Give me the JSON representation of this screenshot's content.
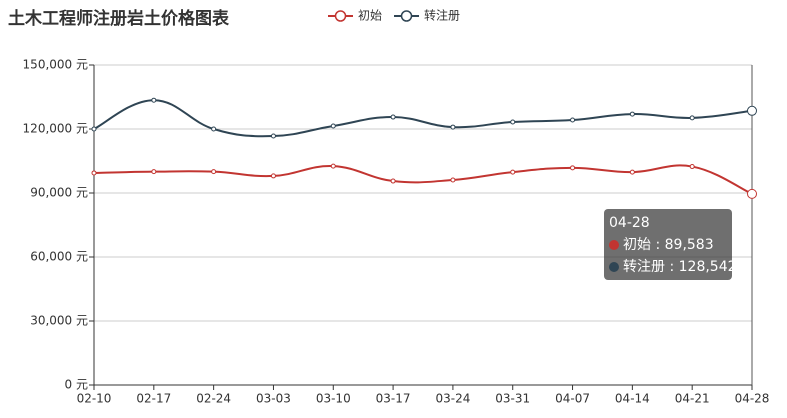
{
  "chart_data": {
    "type": "line",
    "title": "土木工程师注册岩土价格图表",
    "categories": [
      "02-10",
      "02-17",
      "02-24",
      "03-03",
      "03-10",
      "03-17",
      "03-24",
      "03-31",
      "04-07",
      "04-14",
      "04-21",
      "04-28"
    ],
    "series": [
      {
        "name": "初始",
        "color": "#c23531",
        "values": [
          99400,
          100000,
          100000,
          98000,
          102600,
          95600,
          96100,
          99800,
          101800,
          99800,
          102400,
          89583
        ]
      },
      {
        "name": "转注册",
        "color": "#2f4554",
        "values": [
          120000,
          133500,
          120000,
          116700,
          121400,
          125600,
          120900,
          123300,
          124200,
          127000,
          125200,
          128542
        ]
      }
    ],
    "ylim": [
      0,
      150000
    ],
    "yticks": [
      {
        "value": 0,
        "label": "0 元"
      },
      {
        "value": 30000,
        "label": "30,000 元"
      },
      {
        "value": 60000,
        "label": "60,000 元"
      },
      {
        "value": 90000,
        "label": "90,000 元"
      },
      {
        "value": 120000,
        "label": "120,000 元"
      },
      {
        "value": 150000,
        "label": "150,000 元"
      }
    ],
    "grid": true,
    "legend": "top",
    "tooltip": {
      "index": 11,
      "separator": " : ",
      "values": [
        "89,583",
        "128,542"
      ]
    }
  }
}
